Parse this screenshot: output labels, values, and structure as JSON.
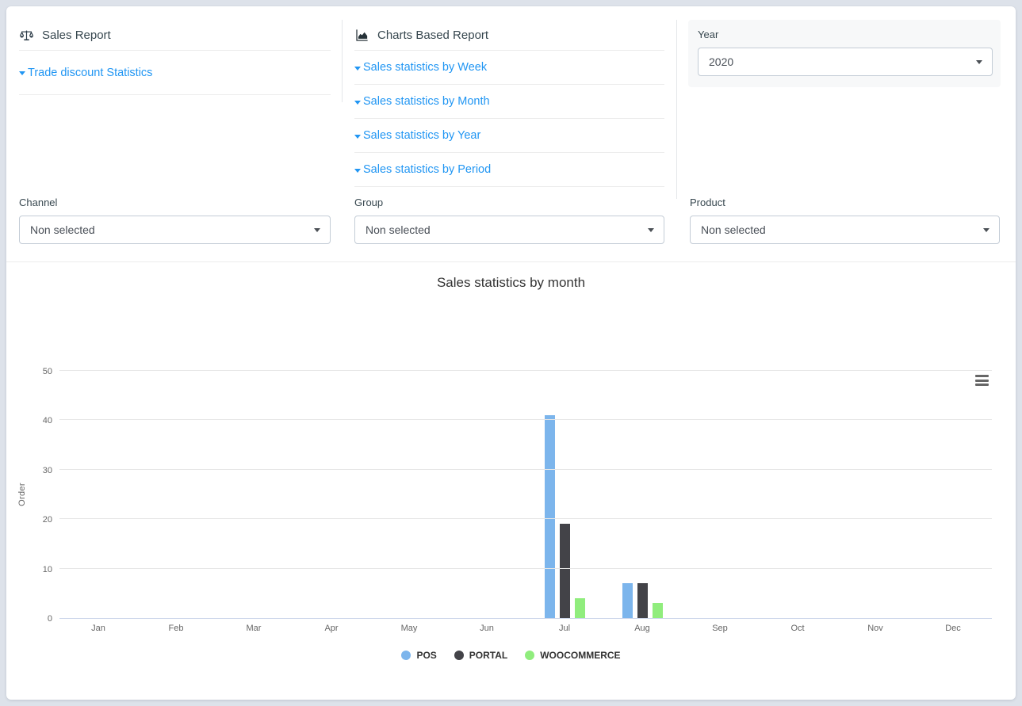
{
  "sales_report": {
    "title": "Sales Report",
    "links": [
      {
        "label": "Trade discount Statistics"
      }
    ]
  },
  "charts_based_report": {
    "title": "Charts Based Report",
    "links": [
      {
        "label": "Sales statistics by Week"
      },
      {
        "label": "Sales statistics by Month"
      },
      {
        "label": "Sales statistics by Year"
      },
      {
        "label": "Sales statistics by Period"
      }
    ]
  },
  "filters": {
    "year": {
      "label": "Year",
      "value": "2020"
    },
    "channel": {
      "label": "Channel",
      "value": "Non selected"
    },
    "group": {
      "label": "Group",
      "value": "Non selected"
    },
    "product": {
      "label": "Product",
      "value": "Non selected"
    }
  },
  "colors": {
    "link_blue": "#2196f3",
    "pos": "#7cb5ec",
    "portal": "#434348",
    "woocommerce": "#90ed7d"
  },
  "chart_data": {
    "type": "bar",
    "title": "Sales statistics by month",
    "xlabel": "",
    "ylabel": "Order",
    "categories": [
      "Jan",
      "Feb",
      "Mar",
      "Apr",
      "May",
      "Jun",
      "Jul",
      "Aug",
      "Sep",
      "Oct",
      "Nov",
      "Dec"
    ],
    "series": [
      {
        "name": "POS",
        "color": "#7cb5ec",
        "values": [
          0,
          0,
          0,
          0,
          0,
          0,
          41,
          7,
          0,
          0,
          0,
          0
        ]
      },
      {
        "name": "PORTAL",
        "color": "#434348",
        "values": [
          0,
          0,
          0,
          0,
          0,
          0,
          19,
          7,
          0,
          0,
          0,
          0
        ]
      },
      {
        "name": "WOOCOMMERCE",
        "color": "#90ed7d",
        "values": [
          0,
          0,
          0,
          0,
          0,
          0,
          4,
          3,
          0,
          0,
          0,
          0
        ]
      }
    ],
    "ylim": [
      0,
      50
    ],
    "yticks": [
      0,
      10,
      20,
      30,
      40,
      50
    ],
    "grid": true,
    "legend_position": "bottom"
  }
}
